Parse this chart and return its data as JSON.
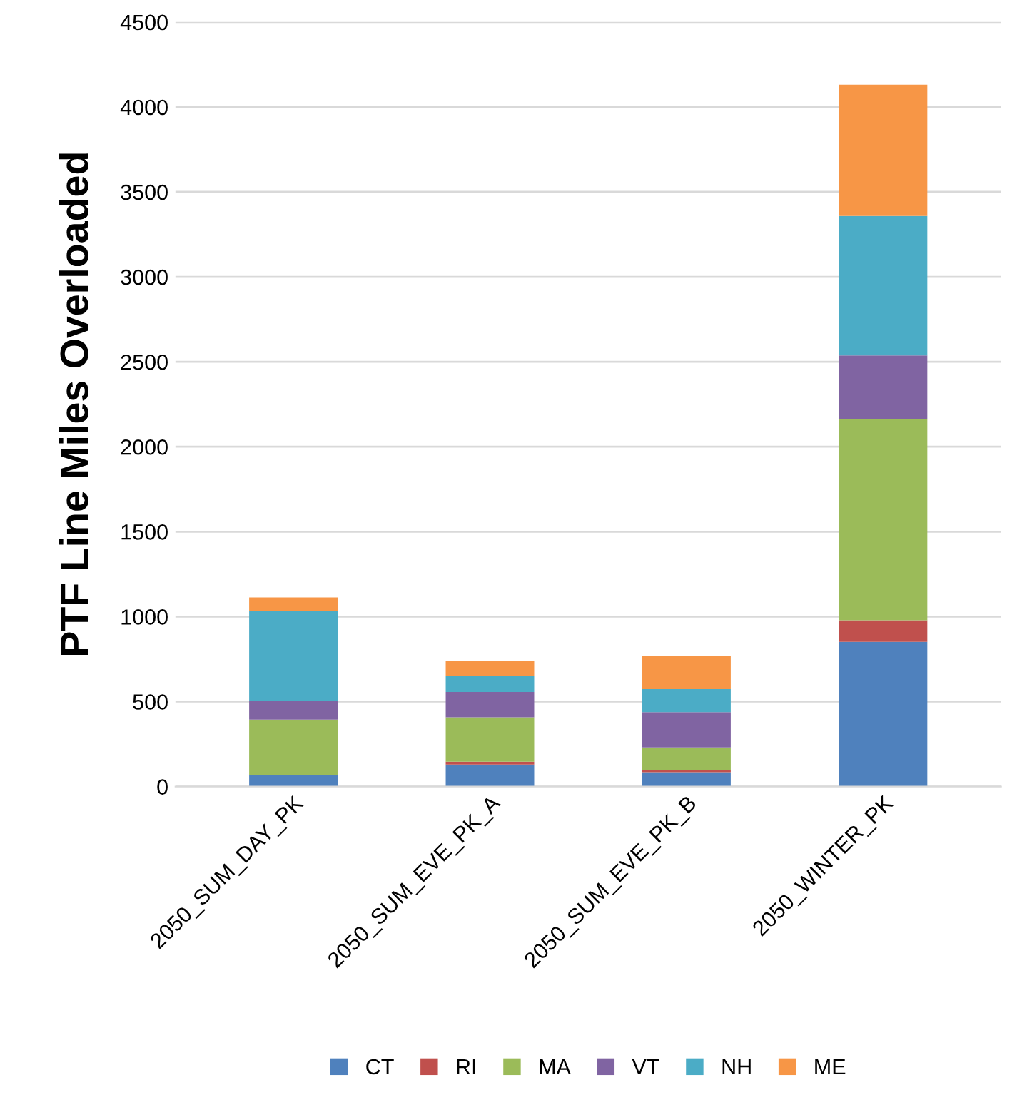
{
  "chart_data": {
    "type": "bar",
    "stacked": true,
    "ylabel": "PTF Line Miles Overloaded",
    "categories": [
      "2050_SUM_DAY_PK",
      "2050_SUM_EVE_PK_A",
      "2050_SUM_EVE_PK_B",
      "2050_WINTER_PK"
    ],
    "series": [
      {
        "name": "CT",
        "color": "#4f81bd",
        "values": [
          65,
          129,
          84,
          851
        ]
      },
      {
        "name": "RI",
        "color": "#c0504d",
        "values": [
          0,
          17,
          15,
          127
        ]
      },
      {
        "name": "MA",
        "color": "#9bbb59",
        "values": [
          329,
          261,
          131,
          1186
        ]
      },
      {
        "name": "VT",
        "color": "#8064a2",
        "values": [
          112,
          149,
          208,
          373
        ]
      },
      {
        "name": "NH",
        "color": "#4bacc6",
        "values": [
          525,
          93,
          135,
          821
        ]
      },
      {
        "name": "ME",
        "color": "#f79646",
        "values": [
          82,
          90,
          197,
          773
        ]
      }
    ],
    "ylim": [
      0,
      4500
    ],
    "yticks": [
      0,
      500,
      1000,
      1500,
      2000,
      2500,
      3000,
      3500,
      4000,
      4500
    ],
    "grid": "y",
    "legend": "bottom"
  }
}
